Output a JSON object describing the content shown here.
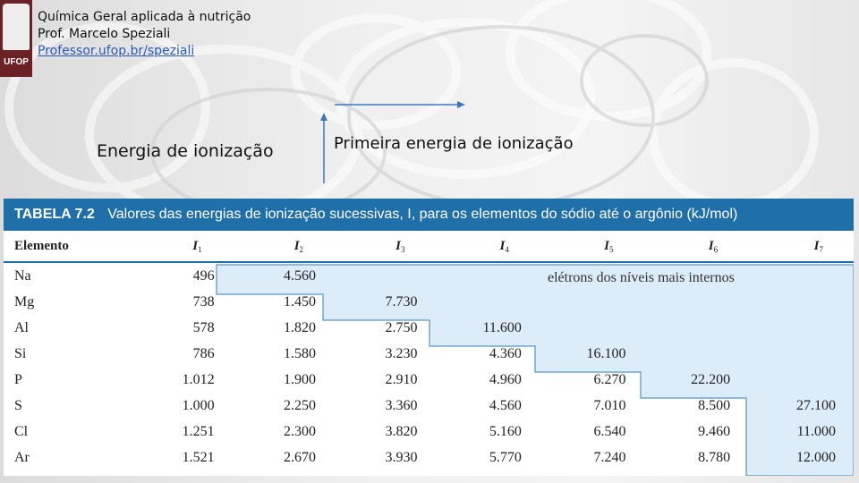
{
  "header": {
    "course": "Química Geral aplicada à nutrição",
    "professor": "Prof. Marcelo Speziali",
    "link": "Professor.ufop.br/speziali"
  },
  "logo": {
    "text": "UFOP"
  },
  "titles": {
    "left": "Energia de ionização",
    "right": "Primeira energia de ionização"
  },
  "table": {
    "caption_label": "TABELA 7.2",
    "caption_text": "Valores das energias de ionização sucessivas, I, para os elementos do sódio até o argônio (kJ/mol)",
    "columns": [
      "Elemento",
      "I",
      "I",
      "I",
      "I",
      "I",
      "I",
      "I"
    ],
    "subscripts": [
      "",
      "1",
      "2",
      "3",
      "4",
      "5",
      "6",
      "7"
    ],
    "inner_label": "elétrons dos níveis mais internos",
    "rows": [
      [
        "Na",
        "496",
        "4.560",
        "",
        "",
        "",
        "",
        ""
      ],
      [
        "Mg",
        "738",
        "1.450",
        "7.730",
        "",
        "",
        "",
        ""
      ],
      [
        "Al",
        "578",
        "1.820",
        "2.750",
        "11.600",
        "",
        "",
        ""
      ],
      [
        "Si",
        "786",
        "1.580",
        "3.230",
        "4.360",
        "16.100",
        "",
        ""
      ],
      [
        "P",
        "1.012",
        "1.900",
        "2.910",
        "4.960",
        "6.270",
        "22.200",
        ""
      ],
      [
        "S",
        "1.000",
        "2.250",
        "3.360",
        "4.560",
        "7.010",
        "8.500",
        "27.100"
      ],
      [
        "Cl",
        "1.251",
        "2.300",
        "3.820",
        "5.160",
        "6.540",
        "9.460",
        "11.000"
      ],
      [
        "Ar",
        "1.521",
        "2.670",
        "3.930",
        "5.770",
        "7.240",
        "8.780",
        "12.000"
      ]
    ]
  },
  "colors": {
    "accent": "#1f6fa8",
    "inner_fill": "#dcecf9",
    "logo": "#6b2226"
  }
}
